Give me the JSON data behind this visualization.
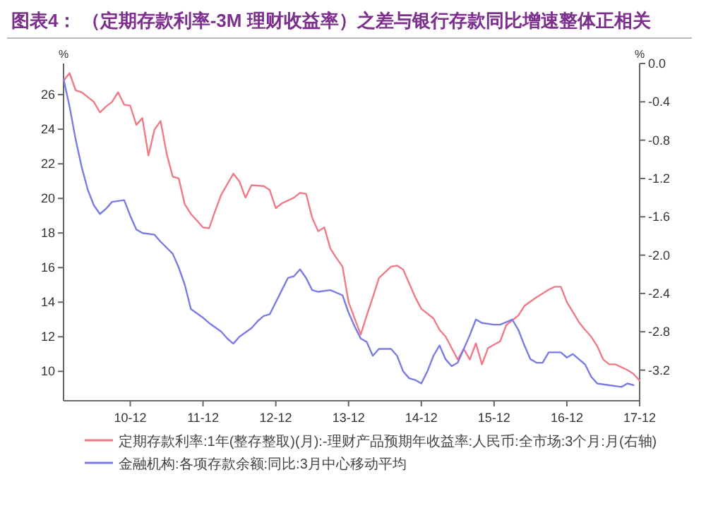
{
  "chart_data": {
    "type": "line",
    "title": "图表4： （定期存款利率-3M 理财收益率）之差与银行存款同比增速整体正相关",
    "ylabel": "%",
    "y2label": "%",
    "xlim": [
      "2010-01",
      "2017-12"
    ],
    "xticks": [
      {
        "value": "2010-12",
        "label": "10-12"
      },
      {
        "value": "2011-12",
        "label": "11-12"
      },
      {
        "value": "2012-12",
        "label": "12-12"
      },
      {
        "value": "2013-12",
        "label": "13-12"
      },
      {
        "value": "2014-12",
        "label": "14-12"
      },
      {
        "value": "2015-12",
        "label": "15-12"
      },
      {
        "value": "2016-12",
        "label": "16-12"
      },
      {
        "value": "2017-12",
        "label": "17-12"
      }
    ],
    "ylim": [
      8.3,
      27.8
    ],
    "yticks": [
      10,
      12,
      14,
      16,
      18,
      20,
      22,
      24,
      26
    ],
    "y2lim": [
      -3.52,
      0
    ],
    "y2ticks": [
      {
        "value": 0,
        "label": "0.0"
      },
      -0.4,
      -0.8,
      -1.2,
      -1.6,
      {
        "value": -2,
        "label": "-2.0"
      },
      -2.4,
      -2.8,
      -3.2
    ],
    "legend": "bottom",
    "grid": false,
    "series": [
      {
        "name": "定期存款利率:1年(整存整取)(月):-理财产品预期年收益率:人民币:全市场:3个月:月(右轴)",
        "color": "#f07a86",
        "axis": "y2",
        "x": [
          "2010-01",
          "2010-02",
          "2010-03",
          "2010-04",
          "2010-06",
          "2010-07",
          "2010-08",
          "2010-09",
          "2010-10",
          "2010-11",
          "2010-12",
          "2011-01",
          "2011-02",
          "2011-03",
          "2011-04",
          "2011-05",
          "2011-06",
          "2011-07",
          "2011-08",
          "2011-09",
          "2011-10",
          "2011-12",
          "2012-01",
          "2012-02",
          "2012-03",
          "2012-05",
          "2012-06",
          "2012-07",
          "2012-08",
          "2012-10",
          "2012-11",
          "2012-12",
          "2013-01",
          "2013-03",
          "2013-04",
          "2013-05",
          "2013-06",
          "2013-07",
          "2013-08",
          "2013-09",
          "2013-10",
          "2013-11",
          "2013-12",
          "2014-02",
          "2014-03",
          "2014-04",
          "2014-05",
          "2014-07",
          "2014-08",
          "2014-09",
          "2014-11",
          "2014-12",
          "2015-02",
          "2015-03",
          "2015-04",
          "2015-06",
          "2015-07",
          "2015-08",
          "2015-09",
          "2015-10",
          "2015-11",
          "2016-01",
          "2016-02",
          "2016-04",
          "2016-05",
          "2016-07",
          "2016-09",
          "2016-10",
          "2016-11",
          "2016-12",
          "2017-02",
          "2017-03",
          "2017-04",
          "2017-05",
          "2017-06",
          "2017-07",
          "2017-08",
          "2017-10",
          "2017-11",
          "2017-12"
        ],
        "values": [
          -0.18,
          -0.1,
          -0.28,
          -0.3,
          -0.4,
          -0.51,
          -0.45,
          -0.4,
          -0.3,
          -0.43,
          -0.44,
          -0.64,
          -0.57,
          -0.96,
          -0.69,
          -0.6,
          -0.94,
          -1.18,
          -1.2,
          -1.47,
          -1.57,
          -1.71,
          -1.72,
          -1.54,
          -1.37,
          -1.15,
          -1.23,
          -1.4,
          -1.27,
          -1.28,
          -1.32,
          -1.51,
          -1.46,
          -1.4,
          -1.35,
          -1.36,
          -1.61,
          -1.75,
          -1.71,
          -1.93,
          -2.03,
          -2.12,
          -2.49,
          -2.83,
          -2.63,
          -2.44,
          -2.24,
          -2.12,
          -2.11,
          -2.15,
          -2.44,
          -2.56,
          -2.66,
          -2.78,
          -2.85,
          -3.09,
          -2.98,
          -3.09,
          -2.92,
          -3.14,
          -2.97,
          -2.9,
          -2.73,
          -2.63,
          -2.53,
          -2.44,
          -2.36,
          -2.33,
          -2.33,
          -2.49,
          -2.7,
          -2.78,
          -2.85,
          -2.95,
          -3.09,
          -3.14,
          -3.14,
          -3.2,
          -3.24,
          -3.31
        ]
      },
      {
        "name": "金融机构:各项存款余额:同比:3月中心移动平均",
        "color": "#7b7be6",
        "x": [
          "2010-01",
          "2010-02",
          "2010-03",
          "2010-04",
          "2010-05",
          "2010-06",
          "2010-07",
          "2010-08",
          "2010-09",
          "2010-11",
          "2010-12",
          "2011-01",
          "2011-02",
          "2011-04",
          "2011-05",
          "2011-07",
          "2011-08",
          "2011-09",
          "2011-10",
          "2011-12",
          "2012-01",
          "2012-03",
          "2012-04",
          "2012-05",
          "2012-06",
          "2012-08",
          "2012-09",
          "2012-10",
          "2012-11",
          "2012-12",
          "2013-01",
          "2013-02",
          "2013-03",
          "2013-04",
          "2013-05",
          "2013-06",
          "2013-07",
          "2013-09",
          "2013-11",
          "2013-12",
          "2014-01",
          "2014-02",
          "2014-03",
          "2014-04",
          "2014-05",
          "2014-07",
          "2014-08",
          "2014-09",
          "2014-10",
          "2014-11",
          "2014-12",
          "2015-01",
          "2015-02",
          "2015-03",
          "2015-04",
          "2015-05",
          "2015-06",
          "2015-07",
          "2015-08",
          "2015-09",
          "2015-10",
          "2015-12",
          "2016-01",
          "2016-03",
          "2016-04",
          "2016-05",
          "2016-06",
          "2016-07",
          "2016-08",
          "2016-09",
          "2016-10",
          "2016-11",
          "2016-12",
          "2017-01",
          "2017-02",
          "2017-03",
          "2017-04",
          "2017-05",
          "2017-07",
          "2017-09",
          "2017-10",
          "2017-11"
        ],
        "values": [
          26.9,
          25.3,
          23.4,
          21.8,
          20.5,
          19.6,
          19.1,
          19.4,
          19.8,
          19.9,
          19.0,
          18.2,
          18.0,
          17.9,
          17.5,
          16.8,
          16.0,
          15.0,
          13.6,
          13.1,
          12.8,
          12.3,
          11.9,
          11.6,
          12.0,
          12.5,
          12.9,
          13.2,
          13.3,
          14.0,
          14.7,
          15.4,
          15.5,
          15.9,
          15.4,
          14.7,
          14.6,
          14.7,
          14.4,
          13.4,
          12.6,
          11.9,
          11.7,
          10.9,
          11.3,
          11.3,
          10.9,
          10.0,
          9.6,
          9.5,
          9.3,
          10.0,
          10.9,
          11.5,
          10.7,
          10.3,
          10.5,
          11.3,
          12.1,
          13.0,
          12.8,
          12.7,
          12.7,
          13.0,
          12.4,
          11.5,
          10.7,
          10.5,
          10.5,
          11.1,
          11.1,
          11.1,
          10.8,
          11.0,
          10.7,
          10.4,
          9.7,
          9.3,
          9.2,
          9.1,
          9.3,
          9.2
        ]
      }
    ]
  }
}
